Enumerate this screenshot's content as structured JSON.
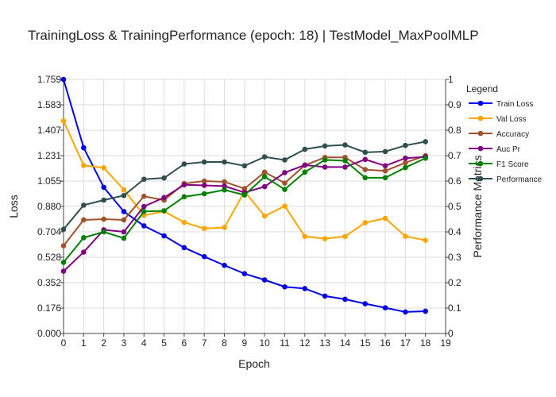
{
  "chart_data": {
    "type": "line",
    "title": "TrainingLoss & TrainingPerformance (epoch: 18) | TestModel_MaxPoolMLP",
    "xlabel": "Epoch",
    "ylabel": "Loss",
    "y2label": "Performance Metrics",
    "xlim": [
      0,
      19
    ],
    "ylim": [
      0,
      1.759
    ],
    "y2lim": [
      0,
      1
    ],
    "x_ticks": [
      0,
      1,
      2,
      3,
      4,
      5,
      6,
      7,
      8,
      9,
      10,
      11,
      12,
      13,
      14,
      15,
      16,
      17,
      18,
      19
    ],
    "y_ticks": [
      "0.000",
      "0.176",
      "0.352",
      "0.528",
      "0.704",
      "0.880",
      "1.055",
      "1.231",
      "1.407",
      "1.583",
      "1.759"
    ],
    "y2_ticks": [
      "0",
      "0.1",
      "0.2",
      "0.3",
      "0.4",
      "0.5",
      "0.6",
      "0.7",
      "0.8",
      "0.9",
      "1"
    ],
    "grid": true,
    "legend_title": "Legend",
    "legend_position": "right",
    "x": [
      0,
      1,
      2,
      3,
      4,
      5,
      6,
      7,
      8,
      9,
      10,
      11,
      12,
      13,
      14,
      15,
      16,
      17,
      18
    ],
    "series": [
      {
        "name": "Train Loss",
        "axis": "y",
        "color": "#0000ee",
        "values": [
          1.759,
          1.286,
          1.012,
          0.844,
          0.745,
          0.676,
          0.594,
          0.532,
          0.472,
          0.414,
          0.371,
          0.323,
          0.311,
          0.259,
          0.237,
          0.206,
          0.178,
          0.149,
          0.154
        ]
      },
      {
        "name": "Val Loss",
        "axis": "y",
        "color": "#ffa500",
        "values": [
          1.472,
          1.163,
          1.147,
          0.995,
          0.818,
          0.846,
          0.769,
          0.727,
          0.734,
          0.983,
          0.813,
          0.882,
          0.672,
          0.656,
          0.672,
          0.767,
          0.797,
          0.673,
          0.645
        ]
      },
      {
        "name": "Accuracy",
        "axis": "y2",
        "color": "#a0522d",
        "values": [
          0.345,
          0.447,
          0.45,
          0.447,
          0.54,
          0.525,
          0.59,
          0.6,
          0.597,
          0.57,
          0.635,
          0.592,
          0.662,
          0.693,
          0.693,
          0.645,
          0.64,
          0.672,
          0.7
        ]
      },
      {
        "name": "Auc Pr",
        "axis": "y2",
        "color": "#800080",
        "values": [
          0.245,
          0.32,
          0.408,
          0.4,
          0.5,
          0.535,
          0.585,
          0.583,
          0.58,
          0.555,
          0.578,
          0.633,
          0.663,
          0.655,
          0.655,
          0.685,
          0.66,
          0.69,
          0.695
        ]
      },
      {
        "name": "F1 Score",
        "axis": "y2",
        "color": "#008000",
        "values": [
          0.28,
          0.377,
          0.4,
          0.375,
          0.48,
          0.483,
          0.538,
          0.55,
          0.565,
          0.545,
          0.617,
          0.567,
          0.635,
          0.683,
          0.68,
          0.613,
          0.613,
          0.653,
          0.69
        ]
      },
      {
        "name": "Performance",
        "axis": "y2",
        "color": "#2f4f4f",
        "values": [
          0.41,
          0.505,
          0.525,
          0.543,
          0.607,
          0.612,
          0.667,
          0.675,
          0.675,
          0.66,
          0.695,
          0.683,
          0.725,
          0.738,
          0.742,
          0.713,
          0.716,
          0.74,
          0.755
        ]
      }
    ]
  }
}
